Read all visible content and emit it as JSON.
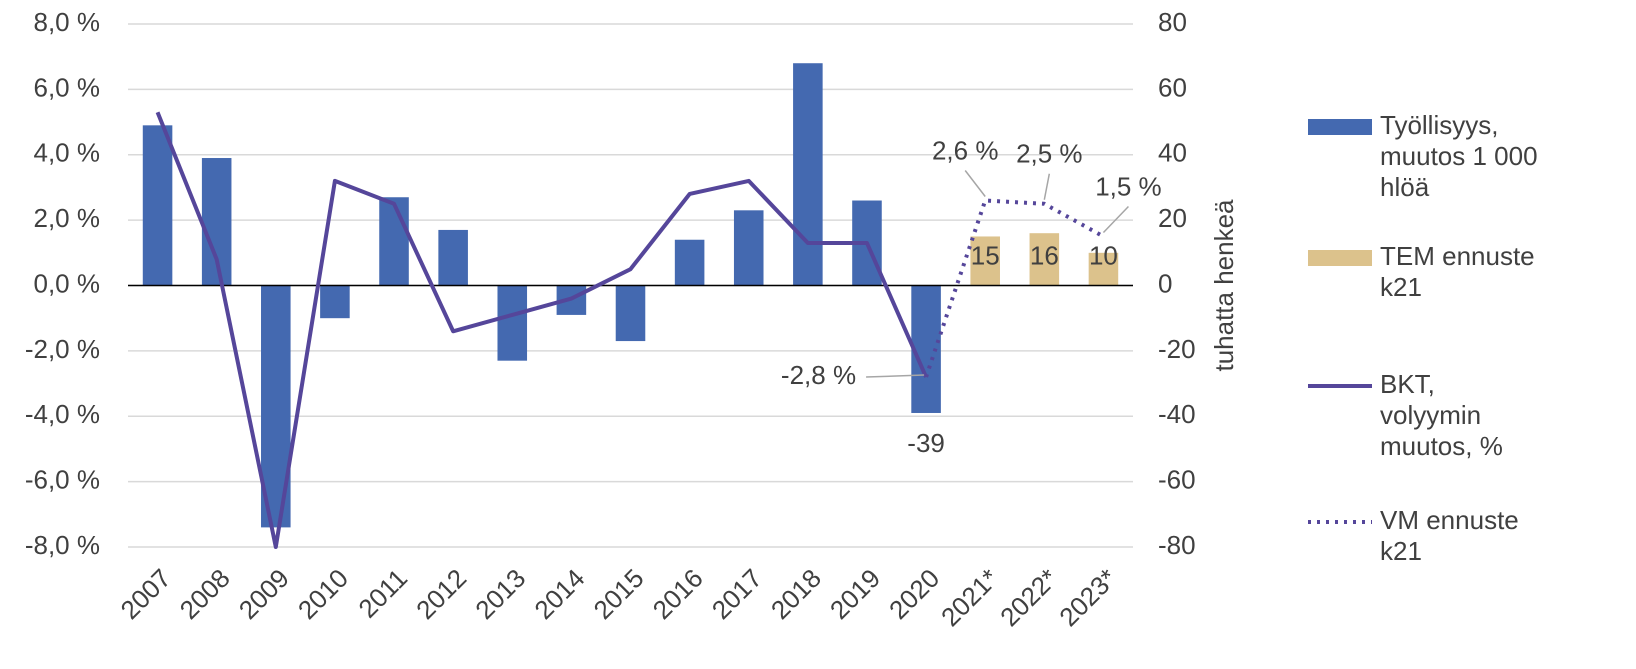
{
  "chart_data": {
    "type": "bar-line",
    "y2_axis_label": "tuhatta henkeä",
    "categories": [
      "2007",
      "2008",
      "2009",
      "2010",
      "2011",
      "2012",
      "2013",
      "2014",
      "2015",
      "2016",
      "2017",
      "2018",
      "2019",
      "2020",
      "2021*",
      "2022*",
      "2023*"
    ],
    "ylim": [
      -8,
      8
    ],
    "yticks": [
      {
        "value": 8,
        "label": "8,0 %"
      },
      {
        "value": 6,
        "label": "6,0 %"
      },
      {
        "value": 4,
        "label": "4,0 %"
      },
      {
        "value": 2,
        "label": "2,0 %"
      },
      {
        "value": 0,
        "label": "0,0 %"
      },
      {
        "value": -2,
        "label": "-2,0 %"
      },
      {
        "value": -4,
        "label": "-4,0 %"
      },
      {
        "value": -6,
        "label": "-6,0 %"
      },
      {
        "value": -8,
        "label": "-8,0 %"
      }
    ],
    "y2lim": [
      -80,
      80
    ],
    "y2ticks": [
      80,
      60,
      40,
      20,
      0,
      -20,
      -40,
      -60,
      -80
    ],
    "grid": true,
    "legend": "right",
    "series": [
      {
        "name": "Työllisyys, muutos 1 000 hlöä",
        "kind": "bar",
        "axis": "y2",
        "color": "#4469b0",
        "values": [
          49,
          39,
          -74,
          -10,
          27,
          17,
          -23,
          -9,
          -17,
          14,
          23,
          68,
          26,
          -39,
          null,
          null,
          null
        ],
        "value_labels": [
          null,
          null,
          null,
          null,
          null,
          null,
          null,
          null,
          null,
          null,
          null,
          null,
          null,
          "-39",
          null,
          null,
          null
        ]
      },
      {
        "name": "TEM ennuste k21",
        "kind": "bar",
        "axis": "y2",
        "color": "#dcc28c",
        "values": [
          null,
          null,
          null,
          null,
          null,
          null,
          null,
          null,
          null,
          null,
          null,
          null,
          null,
          null,
          15,
          16,
          10
        ],
        "value_labels": [
          null,
          null,
          null,
          null,
          null,
          null,
          null,
          null,
          null,
          null,
          null,
          null,
          null,
          null,
          "15",
          "16",
          "10"
        ]
      },
      {
        "name": "BKT, volyymin muutos, %",
        "kind": "line",
        "color": "#55469a",
        "values": [
          5.3,
          0.8,
          -8.0,
          3.2,
          2.5,
          -1.4,
          -0.9,
          -0.4,
          0.5,
          2.8,
          3.2,
          1.3,
          1.3,
          -2.8,
          null,
          null,
          null
        ]
      },
      {
        "name": "VM ennuste k21",
        "kind": "line",
        "dash": true,
        "color": "#55469a",
        "values": [
          null,
          null,
          null,
          null,
          null,
          null,
          null,
          null,
          null,
          null,
          null,
          null,
          null,
          -2.8,
          2.6,
          2.5,
          1.5
        ],
        "value_labels": [
          null,
          null,
          null,
          null,
          null,
          null,
          null,
          null,
          null,
          null,
          null,
          null,
          null,
          "-2,8 %",
          "2,6 %",
          "2,5 %",
          "1,5 %"
        ]
      }
    ]
  }
}
